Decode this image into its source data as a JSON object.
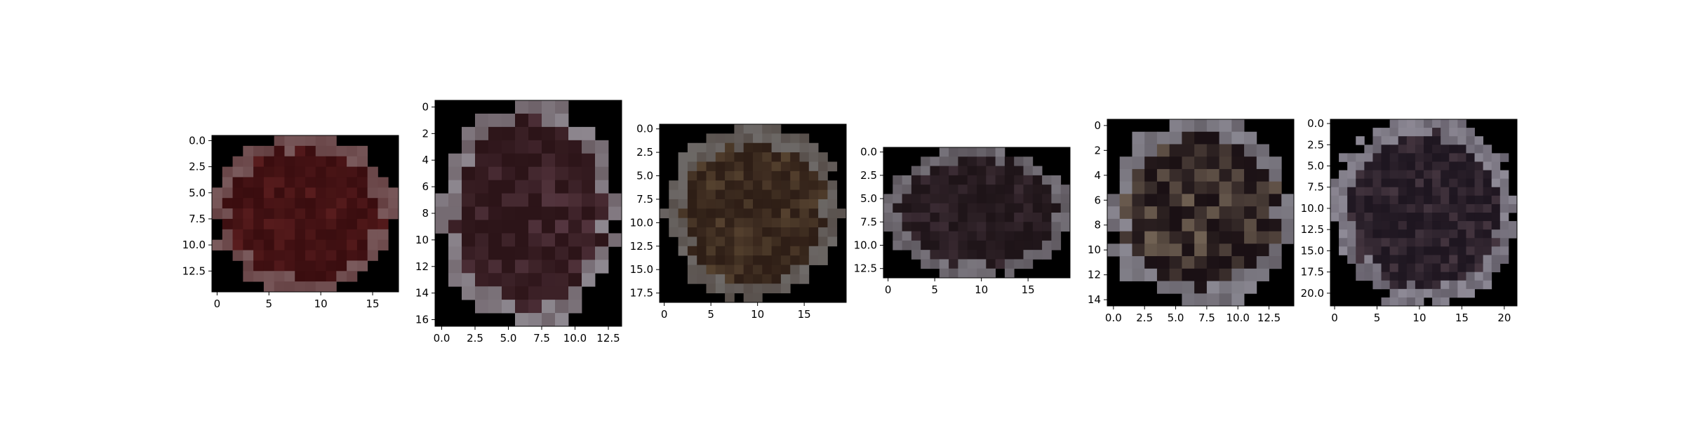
{
  "colors": {
    "background": "#000000",
    "axis": "#000000",
    "text": "#000000"
  },
  "chart_data": [
    {
      "type": "heatmap",
      "xlim": [
        -0.5,
        17.5
      ],
      "ylim": [
        14.5,
        -0.5
      ],
      "x_ticks": [
        0,
        5,
        10,
        15
      ],
      "x_tick_labels": [
        "0",
        "5",
        "10",
        "15"
      ],
      "y_ticks": [
        0,
        2.5,
        5,
        7.5,
        10,
        12.5
      ],
      "y_tick_labels": [
        "0.0",
        "2.5",
        "5.0",
        "7.5",
        "10.0",
        "12.5"
      ],
      "shape": "disc",
      "seed": 11,
      "rim_color": "#7a5a5c",
      "core_color": "#3a0d0f",
      "highlight_color": "#5c1e1f"
    },
    {
      "type": "heatmap",
      "xlim": [
        -0.5,
        13.5
      ],
      "ylim": [
        16.5,
        -0.5
      ],
      "x_ticks": [
        0,
        2.5,
        5,
        7.5,
        10,
        12.5
      ],
      "x_tick_labels": [
        "0.0",
        "2.5",
        "5.0",
        "7.5",
        "10.0",
        "12.5"
      ],
      "y_ticks": [
        0,
        2,
        4,
        6,
        8,
        10,
        12,
        14,
        16
      ],
      "y_tick_labels": [
        "0",
        "2",
        "4",
        "6",
        "8",
        "10",
        "12",
        "14",
        "16"
      ],
      "shape": "oval",
      "seed": 23,
      "rim_color": "#8e8890",
      "core_color": "#2c1418",
      "highlight_color": "#5a3a44"
    },
    {
      "type": "heatmap",
      "xlim": [
        -0.5,
        19.5
      ],
      "ylim": [
        18.5,
        -0.5
      ],
      "x_ticks": [
        0,
        5,
        10,
        15
      ],
      "x_tick_labels": [
        "0",
        "5",
        "10",
        "15"
      ],
      "y_ticks": [
        0,
        2.5,
        5,
        7.5,
        10,
        12.5,
        15,
        17.5
      ],
      "y_tick_labels": [
        "0.0",
        "2.5",
        "5.0",
        "7.5",
        "10.0",
        "12.5",
        "15.0",
        "17.5"
      ],
      "shape": "blob",
      "seed": 37,
      "rim_color": "#6e6a68",
      "core_color": "#2e1e16",
      "highlight_color": "#5a4632"
    },
    {
      "type": "heatmap",
      "xlim": [
        -0.5,
        19.5
      ],
      "ylim": [
        13.5,
        -0.5
      ],
      "x_ticks": [
        0,
        5,
        10,
        15
      ],
      "x_tick_labels": [
        "0",
        "5",
        "10",
        "15"
      ],
      "y_ticks": [
        0,
        2.5,
        5,
        7.5,
        10,
        12.5
      ],
      "y_tick_labels": [
        "0.0",
        "2.5",
        "5.0",
        "7.5",
        "10.0",
        "12.5"
      ],
      "shape": "disc",
      "seed": 41,
      "rim_color": "#7c7880",
      "core_color": "#1e1418",
      "highlight_color": "#3e2e36"
    },
    {
      "type": "heatmap",
      "xlim": [
        -0.5,
        14.5
      ],
      "ylim": [
        14.5,
        -0.5
      ],
      "x_ticks": [
        0,
        2.5,
        5,
        7.5,
        10,
        12.5
      ],
      "x_tick_labels": [
        "0.0",
        "2.5",
        "5.0",
        "7.5",
        "10.0",
        "12.5"
      ],
      "y_ticks": [
        0,
        2,
        4,
        6,
        8,
        10,
        12,
        14
      ],
      "y_tick_labels": [
        "0",
        "2",
        "4",
        "6",
        "8",
        "10",
        "12",
        "14"
      ],
      "shape": "disc",
      "seed": 53,
      "rim_color": "#8a8892",
      "core_color": "#1a1014",
      "highlight_color": "#7a6a5a"
    },
    {
      "type": "heatmap",
      "xlim": [
        -0.5,
        21.5
      ],
      "ylim": [
        21.5,
        -0.5
      ],
      "x_ticks": [
        0,
        5,
        10,
        15,
        20
      ],
      "x_tick_labels": [
        "0",
        "5",
        "10",
        "15",
        "20"
      ],
      "y_ticks": [
        0,
        2.5,
        5,
        7.5,
        10,
        12.5,
        15,
        17.5,
        20
      ],
      "y_tick_labels": [
        "0.0",
        "2.5",
        "5.0",
        "7.5",
        "10.0",
        "12.5",
        "15.0",
        "17.5",
        "20.0"
      ],
      "shape": "disc",
      "seed": 67,
      "rim_color": "#8e8a96",
      "core_color": "#1e1620",
      "highlight_color": "#4a3a44"
    }
  ]
}
